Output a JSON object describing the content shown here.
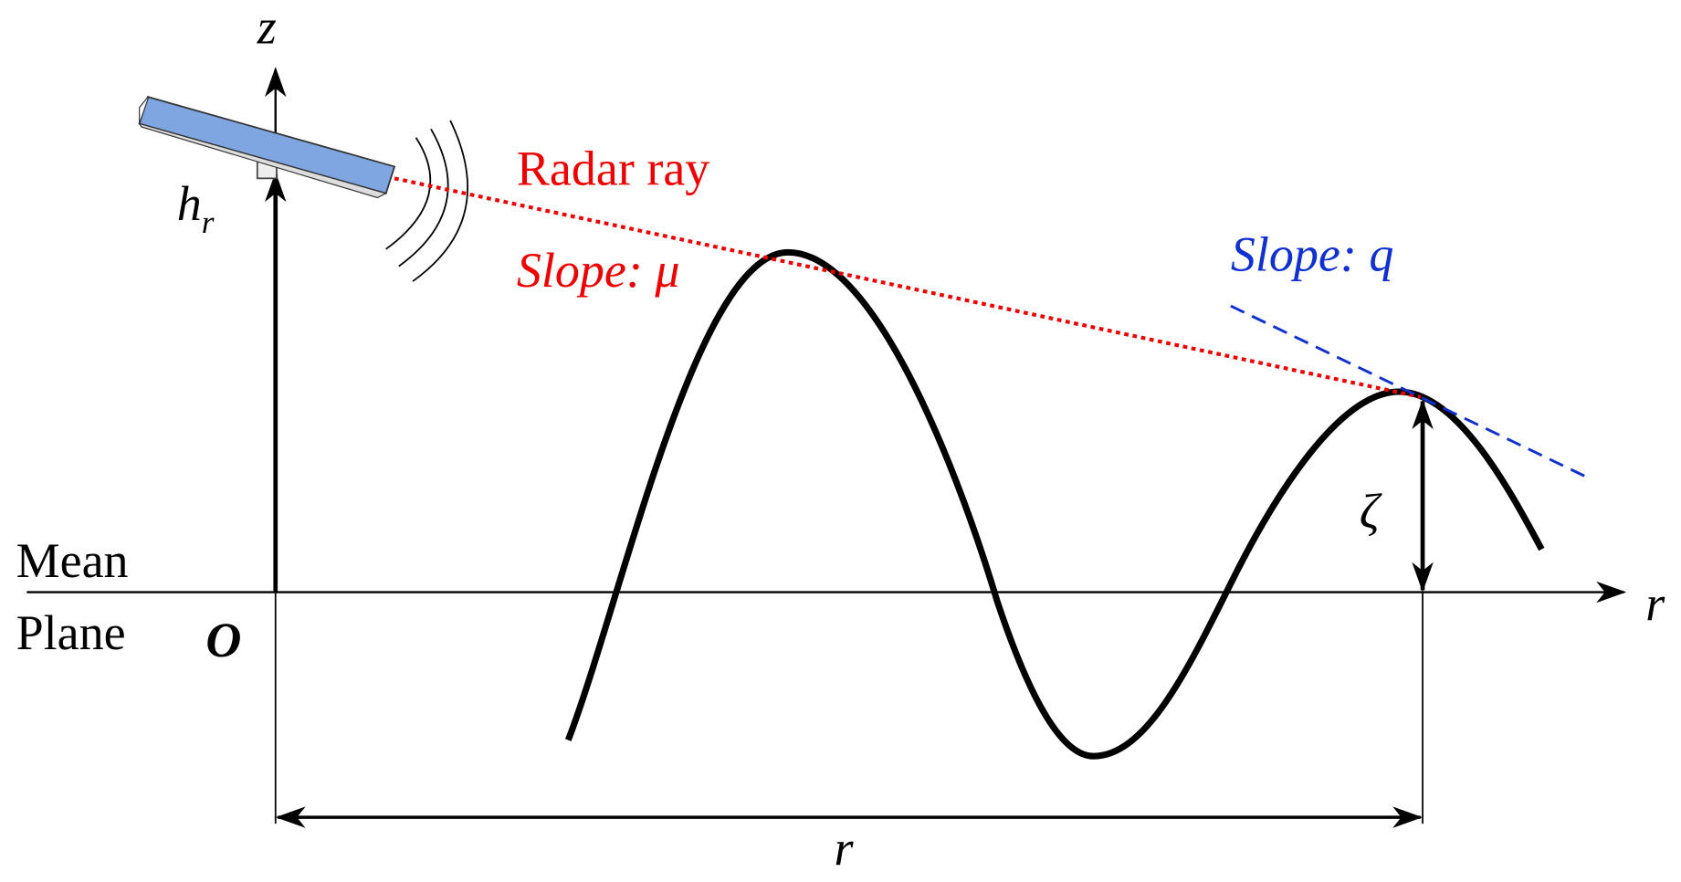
{
  "labels": {
    "z_axis": "z",
    "height": "h",
    "height_sub": "r",
    "radar_ray": "Radar ray",
    "ray_slope": "Slope: μ",
    "tangent_slope": "Slope: q",
    "elevation": "ζ",
    "mean_1": "Mean",
    "mean_2": "Plane",
    "origin": "O",
    "r_axis": "r",
    "distance": "r"
  }
}
